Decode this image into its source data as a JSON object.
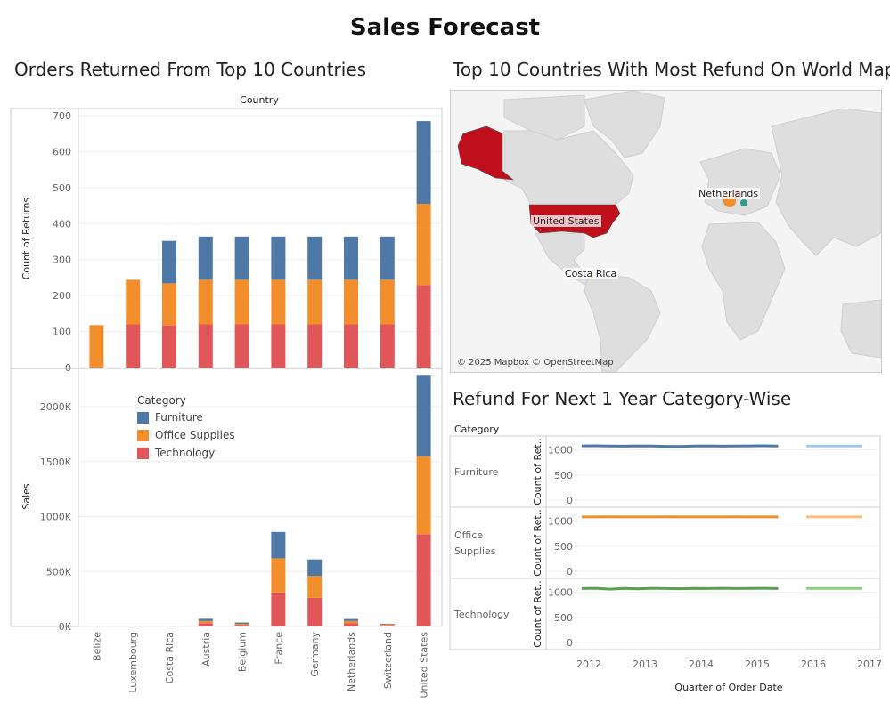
{
  "dashboard": {
    "title": "Sales Forecast"
  },
  "colors": {
    "furniture": "#4e79a7",
    "office": "#f28e2b",
    "technology": "#e15759",
    "furniture_fc": "#a0cbe8",
    "office_fc": "#ffbe7d",
    "technology_line": "#59a14f",
    "technology_fc": "#8cd17d",
    "map_us": "#c0101e",
    "map_land": "#dedede",
    "map_water": "#f4f4f4"
  },
  "returns_chart": {
    "title": "Orders Returned From Top 10 Countries",
    "header": "Country",
    "legend": {
      "title": "Category",
      "items": [
        "Furniture",
        "Office Supplies",
        "Technology"
      ]
    }
  },
  "map": {
    "title": "Top 10 Countries With Most Refund On World Map",
    "labels": [
      "Netherlands",
      "United States",
      "Costa Rica"
    ],
    "credit": "© 2025 Mapbox © OpenStreetMap"
  },
  "forecast": {
    "title": "Refund For Next 1 Year Category-Wise",
    "row_header": "Category",
    "rows": [
      "Furniture",
      "Office\nSupplies",
      "Technology"
    ],
    "ylabel": "Count of Ret..",
    "xlabel": "Quarter of Order Date"
  },
  "chart_data": [
    {
      "type": "bar",
      "stacked": true,
      "title": "Orders Returned From Top 10 Countries",
      "xlabel": "Country",
      "ylabel": "Count of Returns",
      "categories": [
        "Belize",
        "Luxembourg",
        "Costa Rica",
        "Austria",
        "Belgium",
        "France",
        "Germany",
        "Netherlands",
        "Switzerland",
        "United States"
      ],
      "series": [
        {
          "name": "Technology",
          "values": [
            0,
            120,
            117,
            120,
            120,
            120,
            120,
            120,
            120,
            229
          ]
        },
        {
          "name": "Office Supplies",
          "values": [
            118,
            124,
            117,
            124,
            124,
            124,
            124,
            124,
            124,
            226
          ]
        },
        {
          "name": "Furniture",
          "values": [
            0,
            0,
            118,
            120,
            120,
            120,
            120,
            120,
            120,
            230
          ]
        }
      ],
      "ylim": [
        0,
        700
      ],
      "yticks": [
        0,
        100,
        200,
        300,
        400,
        500,
        600,
        700
      ]
    },
    {
      "type": "bar",
      "stacked": true,
      "ylabel": "Sales",
      "categories": [
        "Belize",
        "Luxembourg",
        "Costa Rica",
        "Austria",
        "Belgium",
        "France",
        "Germany",
        "Netherlands",
        "Switzerland",
        "United States"
      ],
      "series": [
        {
          "name": "Technology",
          "values": [
            0,
            0,
            0,
            30000,
            12000,
            310000,
            260000,
            28000,
            10000,
            840000
          ]
        },
        {
          "name": "Office Supplies",
          "values": [
            0,
            0,
            0,
            20000,
            12000,
            310000,
            200000,
            22000,
            9000,
            710000
          ]
        },
        {
          "name": "Furniture",
          "values": [
            0,
            0,
            0,
            20000,
            12000,
            240000,
            150000,
            18000,
            6000,
            740000
          ]
        }
      ],
      "ylim": [
        0,
        2300000
      ],
      "yticks": [
        0,
        500000,
        1000000,
        1500000,
        2000000
      ],
      "ytick_labels": [
        "0K",
        "500K",
        "1000K",
        "1500K",
        "2000K"
      ]
    },
    {
      "type": "line",
      "title": "Refund For Next 1 Year Category-Wise",
      "xlabel": "Quarter of Order Date",
      "ylabel": "Count of Ret..",
      "x_ticks": [
        "2012",
        "2013",
        "2014",
        "2015",
        "2016",
        "2017"
      ],
      "yticks": [
        0,
        500,
        1000
      ],
      "ylim": [
        0,
        1100
      ],
      "panels": [
        {
          "name": "Furniture",
          "actual": [
            1080,
            1082,
            1078,
            1075,
            1080,
            1078,
            1072,
            1070,
            1078,
            1080,
            1075,
            1078,
            1080,
            1082,
            1078
          ],
          "forecast": [
            1078,
            1078,
            1078,
            1078,
            1078
          ]
        },
        {
          "name": "Office Supplies",
          "actual": [
            1085,
            1085,
            1086,
            1085,
            1085,
            1085,
            1086,
            1085,
            1085,
            1085,
            1085,
            1086,
            1085,
            1085,
            1085
          ],
          "forecast": [
            1085,
            1085,
            1085,
            1085,
            1085
          ]
        },
        {
          "name": "Technology",
          "actual": [
            1075,
            1080,
            1062,
            1078,
            1070,
            1080,
            1075,
            1072,
            1078,
            1075,
            1080,
            1076,
            1078,
            1080,
            1076
          ],
          "forecast": [
            1078,
            1078,
            1078,
            1078,
            1078
          ]
        }
      ]
    }
  ]
}
